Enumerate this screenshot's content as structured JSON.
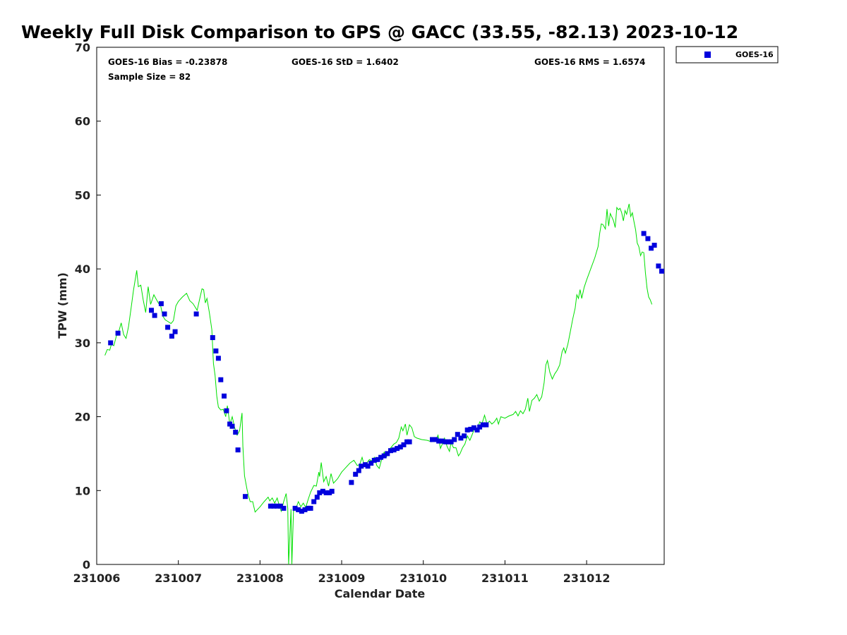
{
  "chart_data": {
    "type": "scatter",
    "title": "Weekly Full Disk Comparison to GPS @ GACC (33.55, -82.13) 2023-10-12",
    "xlabel": "Calendar Date",
    "ylabel": "TPW (mm)",
    "xlim": [
      231006,
      231012.95
    ],
    "ylim": [
      0,
      70
    ],
    "x_ticks": [
      231006,
      231007,
      231008,
      231009,
      231010,
      231011,
      231012
    ],
    "x_tick_labels": [
      "231006",
      "231007",
      "231008",
      "231009",
      "231010",
      "231011",
      "231012"
    ],
    "y_ticks": [
      0,
      10,
      20,
      30,
      40,
      50,
      60,
      70
    ],
    "y_tick_labels": [
      "0",
      "10",
      "20",
      "30",
      "40",
      "50",
      "60",
      "70"
    ],
    "grid": false,
    "legend_position": "top-right",
    "stats": {
      "bias": "GOES-16 Bias = -0.23878",
      "std": "GOES-16 StD = 1.6402",
      "rms": "GOES-16 RMS = 1.6574",
      "sample": "Sample Size = 82"
    },
    "gps_line": {
      "color": "#00e000",
      "points": [
        [
          231006.1,
          28.3
        ],
        [
          231006.13,
          29.1
        ],
        [
          231006.16,
          29.0
        ],
        [
          231006.18,
          29.8
        ],
        [
          231006.21,
          29.6
        ],
        [
          231006.24,
          30.9
        ],
        [
          231006.27,
          31.5
        ],
        [
          231006.3,
          32.7
        ],
        [
          231006.33,
          31.1
        ],
        [
          231006.36,
          30.6
        ],
        [
          231006.39,
          32.2
        ],
        [
          231006.42,
          34.6
        ],
        [
          231006.45,
          37.1
        ],
        [
          231006.49,
          39.8
        ],
        [
          231006.51,
          37.6
        ],
        [
          231006.54,
          37.8
        ],
        [
          231006.57,
          35.8
        ],
        [
          231006.6,
          34.1
        ],
        [
          231006.63,
          37.6
        ],
        [
          231006.66,
          35.2
        ],
        [
          231006.7,
          36.5
        ],
        [
          231006.73,
          35.9
        ],
        [
          231006.76,
          35.3
        ],
        [
          231006.78,
          35.2
        ],
        [
          231006.81,
          33.6
        ],
        [
          231006.84,
          33.1
        ],
        [
          231006.87,
          32.9
        ],
        [
          231006.91,
          32.6
        ],
        [
          231006.94,
          33.0
        ],
        [
          231006.97,
          35.0
        ],
        [
          231007.0,
          35.6
        ],
        [
          231007.05,
          36.2
        ],
        [
          231007.1,
          36.7
        ],
        [
          231007.14,
          35.7
        ],
        [
          231007.18,
          35.3
        ],
        [
          231007.23,
          34.4
        ],
        [
          231007.26,
          35.9
        ],
        [
          231007.29,
          37.3
        ],
        [
          231007.31,
          37.2
        ],
        [
          231007.33,
          35.4
        ],
        [
          231007.35,
          36.0
        ],
        [
          231007.38,
          34.1
        ],
        [
          231007.41,
          31.8
        ],
        [
          231007.43,
          27.2
        ],
        [
          231007.45,
          25.6
        ],
        [
          231007.47,
          22.8
        ],
        [
          231007.49,
          21.3
        ],
        [
          231007.52,
          20.9
        ],
        [
          231007.55,
          21.0
        ],
        [
          231007.58,
          20.0
        ],
        [
          231007.6,
          21.5
        ],
        [
          231007.63,
          19.0
        ],
        [
          231007.66,
          20.0
        ],
        [
          231007.69,
          18.5
        ],
        [
          231007.72,
          17.5
        ],
        [
          231007.75,
          18.1
        ],
        [
          231007.78,
          20.5
        ],
        [
          231007.79,
          16.0
        ],
        [
          231007.81,
          12.0
        ],
        [
          231007.84,
          10.2
        ],
        [
          231007.86,
          9.2
        ],
        [
          231007.88,
          8.5
        ],
        [
          231007.91,
          8.5
        ],
        [
          231007.94,
          7.1
        ],
        [
          231008.0,
          7.8
        ],
        [
          231008.05,
          8.5
        ],
        [
          231008.1,
          9.1
        ],
        [
          231008.12,
          8.6
        ],
        [
          231008.15,
          9.0
        ],
        [
          231008.18,
          8.3
        ],
        [
          231008.21,
          9.0
        ],
        [
          231008.23,
          8.2
        ],
        [
          231008.26,
          7.2
        ],
        [
          231008.29,
          8.5
        ],
        [
          231008.32,
          9.6
        ],
        [
          231008.34,
          7.6
        ],
        [
          231008.35,
          0.0
        ],
        [
          231008.38,
          7.5
        ],
        [
          231008.39,
          0.0
        ],
        [
          231008.41,
          7.2
        ],
        [
          231008.44,
          7.6
        ],
        [
          231008.47,
          8.5
        ],
        [
          231008.5,
          7.8
        ],
        [
          231008.53,
          8.3
        ],
        [
          231008.56,
          7.7
        ],
        [
          231008.59,
          8.8
        ],
        [
          231008.62,
          9.8
        ],
        [
          231008.66,
          10.7
        ],
        [
          231008.69,
          10.6
        ],
        [
          231008.72,
          12.5
        ],
        [
          231008.73,
          11.9
        ],
        [
          231008.75,
          13.8
        ],
        [
          231008.78,
          11.2
        ],
        [
          231008.81,
          11.9
        ],
        [
          231008.84,
          10.6
        ],
        [
          231008.87,
          12.3
        ],
        [
          231008.9,
          11.0
        ],
        [
          231008.95,
          11.6
        ],
        [
          231009.0,
          12.5
        ],
        [
          231009.05,
          13.1
        ],
        [
          231009.1,
          13.7
        ],
        [
          231009.15,
          14.1
        ],
        [
          231009.19,
          13.4
        ],
        [
          231009.22,
          13.5
        ],
        [
          231009.25,
          14.5
        ],
        [
          231009.28,
          13.3
        ],
        [
          231009.31,
          13.8
        ],
        [
          231009.34,
          14.2
        ],
        [
          231009.37,
          14.0
        ],
        [
          231009.4,
          14.5
        ],
        [
          231009.43,
          13.4
        ],
        [
          231009.46,
          13.0
        ],
        [
          231009.49,
          14.2
        ],
        [
          231009.52,
          15.2
        ],
        [
          231009.55,
          14.6
        ],
        [
          231009.58,
          15.5
        ],
        [
          231009.61,
          15.9
        ],
        [
          231009.64,
          16.3
        ],
        [
          231009.67,
          16.5
        ],
        [
          231009.7,
          17.1
        ],
        [
          231009.73,
          18.6
        ],
        [
          231009.75,
          18.1
        ],
        [
          231009.78,
          19.0
        ],
        [
          231009.8,
          17.5
        ],
        [
          231009.83,
          18.9
        ],
        [
          231009.86,
          18.5
        ],
        [
          231009.89,
          17.3
        ],
        [
          231009.92,
          17.1
        ],
        [
          231009.98,
          16.9
        ],
        [
          231010.05,
          16.8
        ],
        [
          231010.1,
          16.6
        ],
        [
          231010.15,
          16.8
        ],
        [
          231010.18,
          17.5
        ],
        [
          231010.21,
          15.7
        ],
        [
          231010.24,
          16.5
        ],
        [
          231010.26,
          17.1
        ],
        [
          231010.29,
          16.0
        ],
        [
          231010.32,
          15.3
        ],
        [
          231010.34,
          16.5
        ],
        [
          231010.37,
          15.8
        ],
        [
          231010.4,
          15.8
        ],
        [
          231010.43,
          14.7
        ],
        [
          231010.45,
          15.0
        ],
        [
          231010.48,
          15.8
        ],
        [
          231010.51,
          16.3
        ],
        [
          231010.54,
          17.4
        ],
        [
          231010.57,
          16.8
        ],
        [
          231010.6,
          17.6
        ],
        [
          231010.63,
          18.5
        ],
        [
          231010.66,
          18.2
        ],
        [
          231010.69,
          19.3
        ],
        [
          231010.72,
          19.1
        ],
        [
          231010.75,
          20.2
        ],
        [
          231010.78,
          19.0
        ],
        [
          231010.81,
          19.4
        ],
        [
          231010.84,
          19.0
        ],
        [
          231010.87,
          19.3
        ],
        [
          231010.9,
          19.8
        ],
        [
          231010.92,
          19.0
        ],
        [
          231010.95,
          20.0
        ],
        [
          231011.0,
          19.8
        ],
        [
          231011.05,
          20.1
        ],
        [
          231011.1,
          20.3
        ],
        [
          231011.13,
          20.7
        ],
        [
          231011.16,
          20.1
        ],
        [
          231011.19,
          20.8
        ],
        [
          231011.22,
          20.4
        ],
        [
          231011.25,
          21.0
        ],
        [
          231011.28,
          22.5
        ],
        [
          231011.3,
          20.7
        ],
        [
          231011.33,
          22.2
        ],
        [
          231011.36,
          22.5
        ],
        [
          231011.39,
          23.0
        ],
        [
          231011.42,
          22.1
        ],
        [
          231011.45,
          22.7
        ],
        [
          231011.48,
          24.6
        ],
        [
          231011.5,
          27.0
        ],
        [
          231011.52,
          27.6
        ],
        [
          231011.55,
          26.0
        ],
        [
          231011.58,
          25.1
        ],
        [
          231011.61,
          25.8
        ],
        [
          231011.64,
          26.3
        ],
        [
          231011.67,
          27.0
        ],
        [
          231011.7,
          28.8
        ],
        [
          231011.72,
          29.3
        ],
        [
          231011.74,
          28.6
        ],
        [
          231011.77,
          29.8
        ],
        [
          231011.8,
          31.5
        ],
        [
          231011.83,
          33.2
        ],
        [
          231011.86,
          34.7
        ],
        [
          231011.88,
          36.5
        ],
        [
          231011.9,
          36.0
        ],
        [
          231011.92,
          37.2
        ],
        [
          231011.94,
          36.0
        ],
        [
          231011.97,
          37.5
        ],
        [
          231012.0,
          38.5
        ],
        [
          231012.05,
          40.0
        ],
        [
          231012.1,
          41.5
        ],
        [
          231012.14,
          43.0
        ],
        [
          231012.16,
          44.8
        ],
        [
          231012.18,
          46.1
        ],
        [
          231012.2,
          46.0
        ],
        [
          231012.23,
          45.4
        ],
        [
          231012.25,
          48.1
        ],
        [
          231012.27,
          45.8
        ],
        [
          231012.29,
          47.5
        ],
        [
          231012.31,
          47.0
        ],
        [
          231012.33,
          46.5
        ],
        [
          231012.35,
          45.6
        ],
        [
          231012.37,
          48.3
        ],
        [
          231012.39,
          48.0
        ],
        [
          231012.41,
          48.2
        ],
        [
          231012.43,
          47.6
        ],
        [
          231012.45,
          46.5
        ],
        [
          231012.47,
          47.9
        ],
        [
          231012.49,
          47.4
        ],
        [
          231012.52,
          48.8
        ],
        [
          231012.54,
          47.1
        ],
        [
          231012.56,
          47.6
        ],
        [
          231012.58,
          46.4
        ],
        [
          231012.6,
          45.3
        ],
        [
          231012.62,
          43.5
        ],
        [
          231012.64,
          43.0
        ],
        [
          231012.66,
          41.8
        ],
        [
          231012.68,
          42.3
        ],
        [
          231012.7,
          42.2
        ],
        [
          231012.72,
          39.5
        ],
        [
          231012.74,
          37.4
        ],
        [
          231012.76,
          36.2
        ],
        [
          231012.78,
          35.8
        ],
        [
          231012.8,
          35.2
        ]
      ]
    },
    "series": [
      {
        "name": "GOES-16",
        "color": "#0000dd",
        "marker": "square",
        "points": [
          [
            231006.17,
            30.0
          ],
          [
            231006.26,
            31.3
          ],
          [
            231006.67,
            34.4
          ],
          [
            231006.71,
            33.7
          ],
          [
            231006.79,
            35.3
          ],
          [
            231006.83,
            33.9
          ],
          [
            231006.87,
            32.1
          ],
          [
            231006.92,
            30.9
          ],
          [
            231006.96,
            31.5
          ],
          [
            231007.22,
            33.9
          ],
          [
            231007.42,
            30.7
          ],
          [
            231007.46,
            28.9
          ],
          [
            231007.49,
            27.9
          ],
          [
            231007.52,
            25.0
          ],
          [
            231007.56,
            22.8
          ],
          [
            231007.59,
            20.8
          ],
          [
            231007.63,
            19.0
          ],
          [
            231007.66,
            18.7
          ],
          [
            231007.7,
            17.9
          ],
          [
            231007.73,
            15.5
          ],
          [
            231007.82,
            9.2
          ],
          [
            231008.13,
            7.9
          ],
          [
            231008.17,
            7.9
          ],
          [
            231008.21,
            7.9
          ],
          [
            231008.25,
            7.9
          ],
          [
            231008.29,
            7.6
          ],
          [
            231008.43,
            7.6
          ],
          [
            231008.47,
            7.4
          ],
          [
            231008.51,
            7.2
          ],
          [
            231008.55,
            7.4
          ],
          [
            231008.59,
            7.6
          ],
          [
            231008.62,
            7.6
          ],
          [
            231008.66,
            8.5
          ],
          [
            231008.7,
            9.1
          ],
          [
            231008.73,
            9.7
          ],
          [
            231008.77,
            9.9
          ],
          [
            231008.81,
            9.7
          ],
          [
            231008.85,
            9.7
          ],
          [
            231008.88,
            9.9
          ],
          [
            231009.12,
            11.1
          ],
          [
            231009.17,
            12.2
          ],
          [
            231009.21,
            12.7
          ],
          [
            231009.24,
            13.3
          ],
          [
            231009.29,
            13.5
          ],
          [
            231009.32,
            13.3
          ],
          [
            231009.36,
            13.7
          ],
          [
            231009.4,
            14.1
          ],
          [
            231009.44,
            14.2
          ],
          [
            231009.48,
            14.5
          ],
          [
            231009.52,
            14.7
          ],
          [
            231009.56,
            15.0
          ],
          [
            231009.6,
            15.4
          ],
          [
            231009.64,
            15.5
          ],
          [
            231009.68,
            15.7
          ],
          [
            231009.72,
            15.9
          ],
          [
            231009.76,
            16.2
          ],
          [
            231009.8,
            16.6
          ],
          [
            231009.83,
            16.6
          ],
          [
            231010.11,
            16.9
          ],
          [
            231010.15,
            16.9
          ],
          [
            231010.19,
            16.7
          ],
          [
            231010.23,
            16.7
          ],
          [
            231010.27,
            16.6
          ],
          [
            231010.3,
            16.6
          ],
          [
            231010.34,
            16.6
          ],
          [
            231010.38,
            16.9
          ],
          [
            231010.42,
            17.6
          ],
          [
            231010.46,
            17.1
          ],
          [
            231010.5,
            17.4
          ],
          [
            231010.54,
            18.2
          ],
          [
            231010.58,
            18.3
          ],
          [
            231010.62,
            18.5
          ],
          [
            231010.66,
            18.2
          ],
          [
            231010.69,
            18.6
          ],
          [
            231010.73,
            18.9
          ],
          [
            231010.77,
            18.9
          ],
          [
            231012.7,
            44.8
          ],
          [
            231012.75,
            44.1
          ],
          [
            231012.79,
            42.8
          ],
          [
            231012.83,
            43.2
          ],
          [
            231012.88,
            40.4
          ],
          [
            231012.92,
            39.7
          ]
        ]
      }
    ]
  }
}
